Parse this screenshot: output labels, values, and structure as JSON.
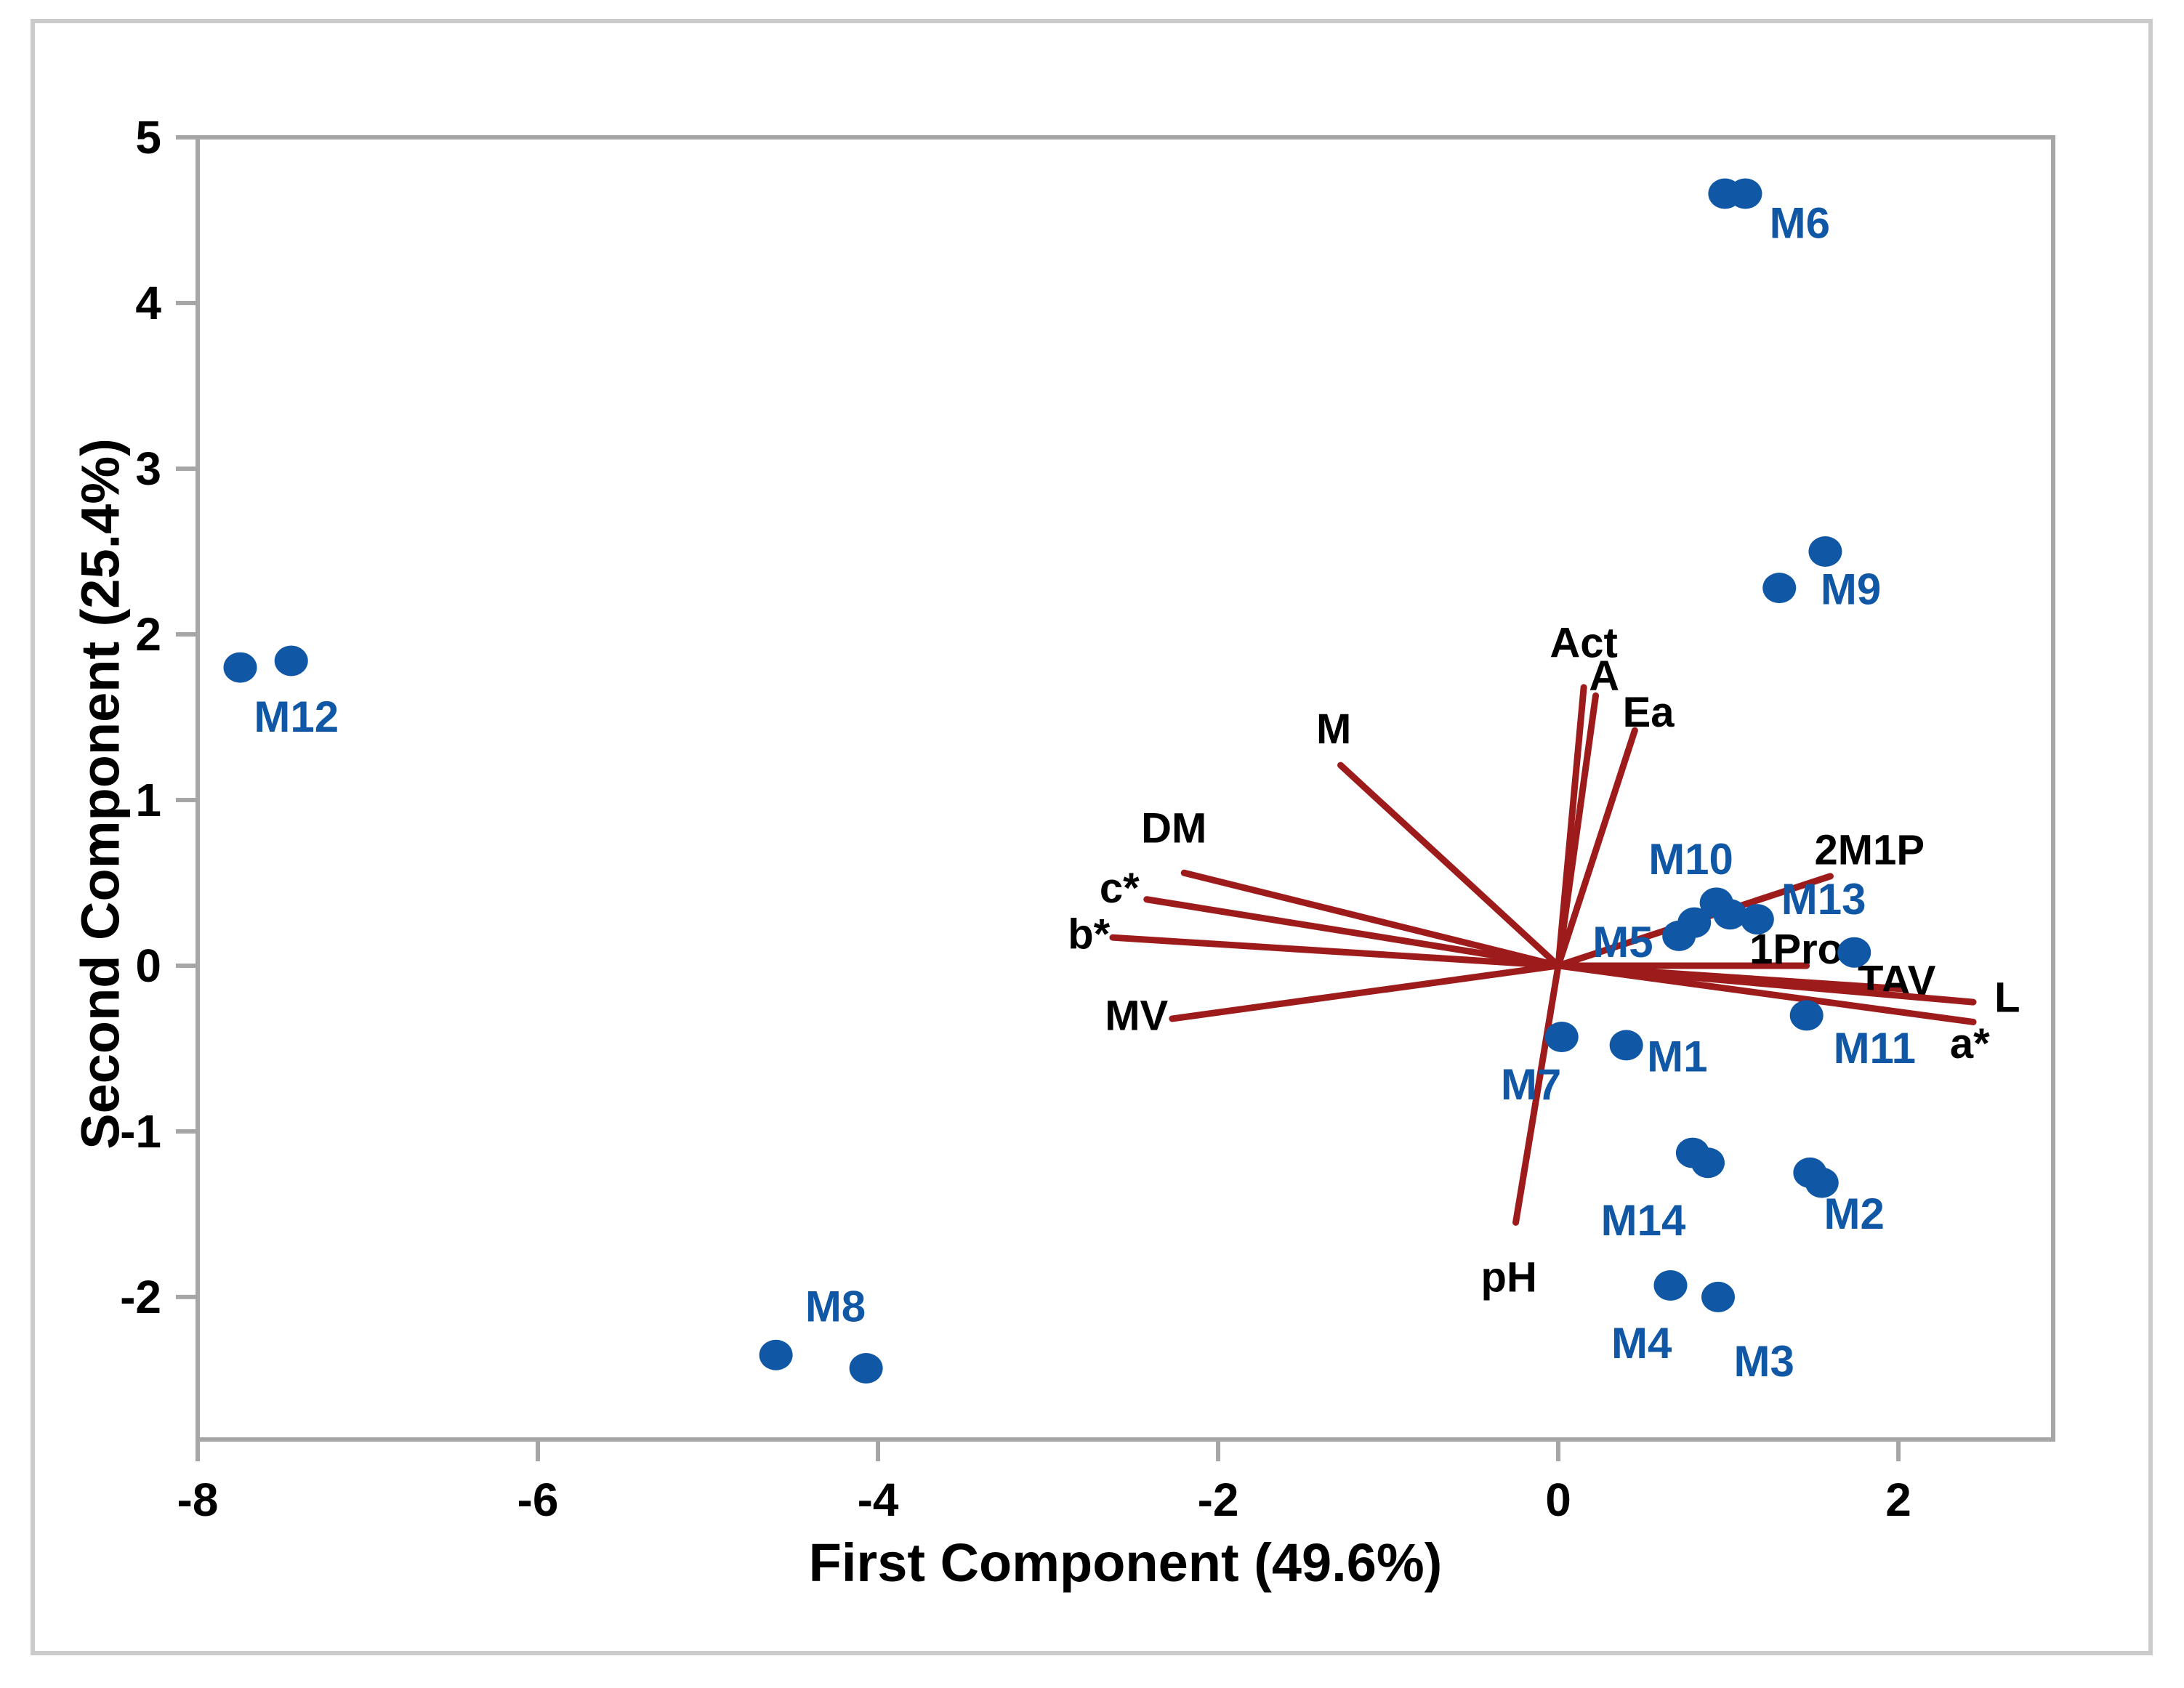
{
  "figure": {
    "kind": "PCA biplot",
    "x_axis_title": "First Component (49.6%)",
    "y_axis_title": "Second Component (25.4%)"
  },
  "chart_data": {
    "type": "scatter",
    "title": "",
    "xlabel": "First Component (49.6%)",
    "ylabel": "Second Component (25.4%)",
    "xlim": [
      -8,
      2.91
    ],
    "ylim": [
      -2.86,
      5
    ],
    "xticks": [
      -8,
      -6,
      -4,
      -2,
      0,
      2
    ],
    "yticks": [
      -2,
      -1,
      0,
      1,
      2,
      3,
      4,
      5
    ],
    "grid": false,
    "legend": "none",
    "colors": {
      "score_points": "#1057A6",
      "score_labels": "#1057A6",
      "loading_vectors": "#9E1B1B",
      "loading_labels": "#000000",
      "frame": "#A6A6A6",
      "outer_border": "#CBCBCB"
    },
    "samples": [
      {
        "name": "M1",
        "points": [
          [
            0.4,
            -0.48
          ]
        ],
        "label_pos": [
          0.7,
          -0.55
        ]
      },
      {
        "name": "M2",
        "points": [
          [
            1.48,
            -1.25
          ],
          [
            1.55,
            -1.31
          ]
        ],
        "label_pos": [
          1.74,
          -1.5
        ]
      },
      {
        "name": "M3",
        "points": [
          [
            0.94,
            -2.0
          ]
        ],
        "label_pos": [
          1.21,
          -2.39
        ]
      },
      {
        "name": "M4",
        "points": [
          [
            0.66,
            -1.93
          ]
        ],
        "label_pos": [
          0.49,
          -2.28
        ]
      },
      {
        "name": "M5",
        "points": [
          [
            0.71,
            0.18
          ],
          [
            0.8,
            0.26
          ]
        ],
        "label_pos": [
          0.38,
          0.14
        ]
      },
      {
        "name": "M6",
        "points": [
          [
            0.98,
            4.66
          ],
          [
            1.1,
            4.66
          ]
        ],
        "label_pos": [
          1.42,
          4.48
        ]
      },
      {
        "name": "M7",
        "points": [
          [
            0.02,
            -0.43
          ]
        ],
        "label_pos": [
          -0.16,
          -0.72
        ]
      },
      {
        "name": "M8",
        "points": [
          [
            -4.6,
            -2.35
          ],
          [
            -4.07,
            -2.43
          ]
        ],
        "label_pos": [
          -4.25,
          -2.06
        ]
      },
      {
        "name": "M9",
        "points": [
          [
            1.3,
            2.28
          ],
          [
            1.57,
            2.5
          ]
        ],
        "label_pos": [
          1.72,
          2.27
        ]
      },
      {
        "name": "M10",
        "points": [
          [
            0.93,
            0.38
          ],
          [
            1.01,
            0.31
          ]
        ],
        "label_pos": [
          0.78,
          0.64
        ]
      },
      {
        "name": "M11",
        "points": [
          [
            1.46,
            -0.3
          ]
        ],
        "label_pos": [
          1.86,
          -0.5
        ]
      },
      {
        "name": "M12",
        "points": [
          [
            -7.75,
            1.8
          ],
          [
            -7.45,
            1.84
          ]
        ],
        "label_pos": [
          -7.42,
          1.5
        ]
      },
      {
        "name": "M13",
        "points": [
          [
            1.17,
            0.28
          ],
          [
            1.74,
            0.08
          ]
        ],
        "label_pos": [
          1.56,
          0.4
        ]
      },
      {
        "name": "M14",
        "points": [
          [
            0.79,
            -1.13
          ],
          [
            0.88,
            -1.19
          ]
        ],
        "label_pos": [
          0.5,
          -1.54
        ]
      }
    ],
    "loadings": [
      {
        "name": "Act",
        "vector": [
          0.15,
          1.68
        ],
        "label_pos": [
          0.15,
          1.95
        ]
      },
      {
        "name": "A",
        "vector": [
          0.22,
          1.63
        ],
        "label_pos": [
          0.27,
          1.75
        ]
      },
      {
        "name": "Ea",
        "vector": [
          0.45,
          1.42
        ],
        "label_pos": [
          0.53,
          1.53
        ]
      },
      {
        "name": "M",
        "vector": [
          -1.28,
          1.21
        ],
        "label_pos": [
          -1.32,
          1.43
        ]
      },
      {
        "name": "DM",
        "vector": [
          -2.2,
          0.56
        ],
        "label_pos": [
          -2.26,
          0.83
        ]
      },
      {
        "name": "c*",
        "vector": [
          -2.42,
          0.4
        ],
        "label_pos": [
          -2.58,
          0.47
        ]
      },
      {
        "name": "b*",
        "vector": [
          -2.62,
          0.17
        ],
        "label_pos": [
          -2.76,
          0.19
        ]
      },
      {
        "name": "MV",
        "vector": [
          -2.27,
          -0.32
        ],
        "label_pos": [
          -2.48,
          -0.3
        ]
      },
      {
        "name": "pH",
        "vector": [
          -0.25,
          -1.55
        ],
        "label_pos": [
          -0.29,
          -1.88
        ]
      },
      {
        "name": "2M1P",
        "vector": [
          1.6,
          0.54
        ],
        "label_pos": [
          1.83,
          0.7
        ]
      },
      {
        "name": "1Pro",
        "vector": [
          1.46,
          0.0
        ],
        "label_pos": [
          1.4,
          0.1
        ]
      },
      {
        "name": "TAV",
        "vector": [
          2.02,
          -0.14
        ],
        "label_pos": [
          1.99,
          -0.09
        ]
      },
      {
        "name": "L",
        "vector": [
          2.44,
          -0.22
        ],
        "label_pos": [
          2.64,
          -0.19
        ]
      },
      {
        "name": "a*",
        "vector": [
          2.44,
          -0.34
        ],
        "label_pos": [
          2.42,
          -0.47
        ]
      }
    ],
    "marker": {
      "rx": 23,
      "ry": 21
    },
    "vector_stroke_width": 9
  }
}
